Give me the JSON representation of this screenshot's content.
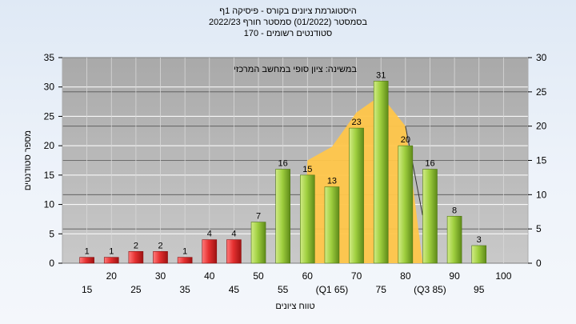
{
  "titles": {
    "line1": "היסטוגרמת ציונים בקורס - פיסיקה 1ף",
    "line2": "בסמסטר  (01/2022)  סמסטר חורף 2022/23",
    "line3": "סטודנטים רשומים - 170"
  },
  "chart_data": {
    "type": "bar",
    "title": "היסטוגרמת ציונים בקורס - פיסיקה 1ף",
    "xlabel": "טווח ציונים",
    "ylabel": "מספר סטודנטים",
    "annotation": "במשינה: ציון סופי במחשב המרכזי",
    "ylim": [
      0,
      35
    ],
    "y2lim": [
      0,
      30
    ],
    "y_ticks": [
      0,
      5,
      10,
      15,
      20,
      25,
      30,
      35
    ],
    "y2_ticks": [
      0,
      5,
      10,
      15,
      20,
      25,
      30
    ],
    "grid": true,
    "categories": [
      "15",
      "25",
      "30",
      "35",
      "40",
      "45",
      "50",
      "55",
      "60",
      "65",
      "70",
      "75",
      "80",
      "85",
      "90",
      "95",
      "100"
    ],
    "values": [
      1,
      1,
      2,
      2,
      1,
      4,
      4,
      7,
      16,
      15,
      13,
      23,
      31,
      20,
      16,
      8,
      3
    ],
    "data_labels": [
      "1",
      "1",
      "2",
      "2",
      "1",
      "4",
      "4",
      "7",
      "16",
      "15",
      "13",
      "23",
      "31",
      "20",
      "16",
      "8",
      "3"
    ],
    "bar_colors": [
      "red",
      "red",
      "red",
      "red",
      "red",
      "red",
      "red",
      "green",
      "green",
      "green",
      "green",
      "green",
      "green",
      "green",
      "green",
      "green",
      "green"
    ],
    "x_tick_labels": [
      {
        "text": "15",
        "row": 1
      },
      {
        "text": "20",
        "row": 0
      },
      {
        "text": "25",
        "row": 1
      },
      {
        "text": "30",
        "row": 0
      },
      {
        "text": "35",
        "row": 1
      },
      {
        "text": "40",
        "row": 0
      },
      {
        "text": "45",
        "row": 1
      },
      {
        "text": "50",
        "row": 0
      },
      {
        "text": "55",
        "row": 1
      },
      {
        "text": "60",
        "row": 0
      },
      {
        "text": "(Q1 65)",
        "row": 1
      },
      {
        "text": "70",
        "row": 0
      },
      {
        "text": "75",
        "row": 1
      },
      {
        "text": "80",
        "row": 0
      },
      {
        "text": "(Q3 85)",
        "row": 1
      },
      {
        "text": "90",
        "row": 0
      },
      {
        "text": "95",
        "row": 1
      },
      {
        "text": "100",
        "row": 0
      }
    ],
    "interquartile_area": {
      "x": [
        "65",
        "70",
        "75",
        "80",
        "85"
      ],
      "values": [
        15,
        17,
        22,
        24.5,
        20
      ]
    },
    "colors": {
      "plot_bg": "#b9b9b9",
      "grid": "#ffffff",
      "red_bar": "#dd2b2b",
      "green_bar": "#9ccc3c",
      "area": "#ffc64a"
    }
  }
}
